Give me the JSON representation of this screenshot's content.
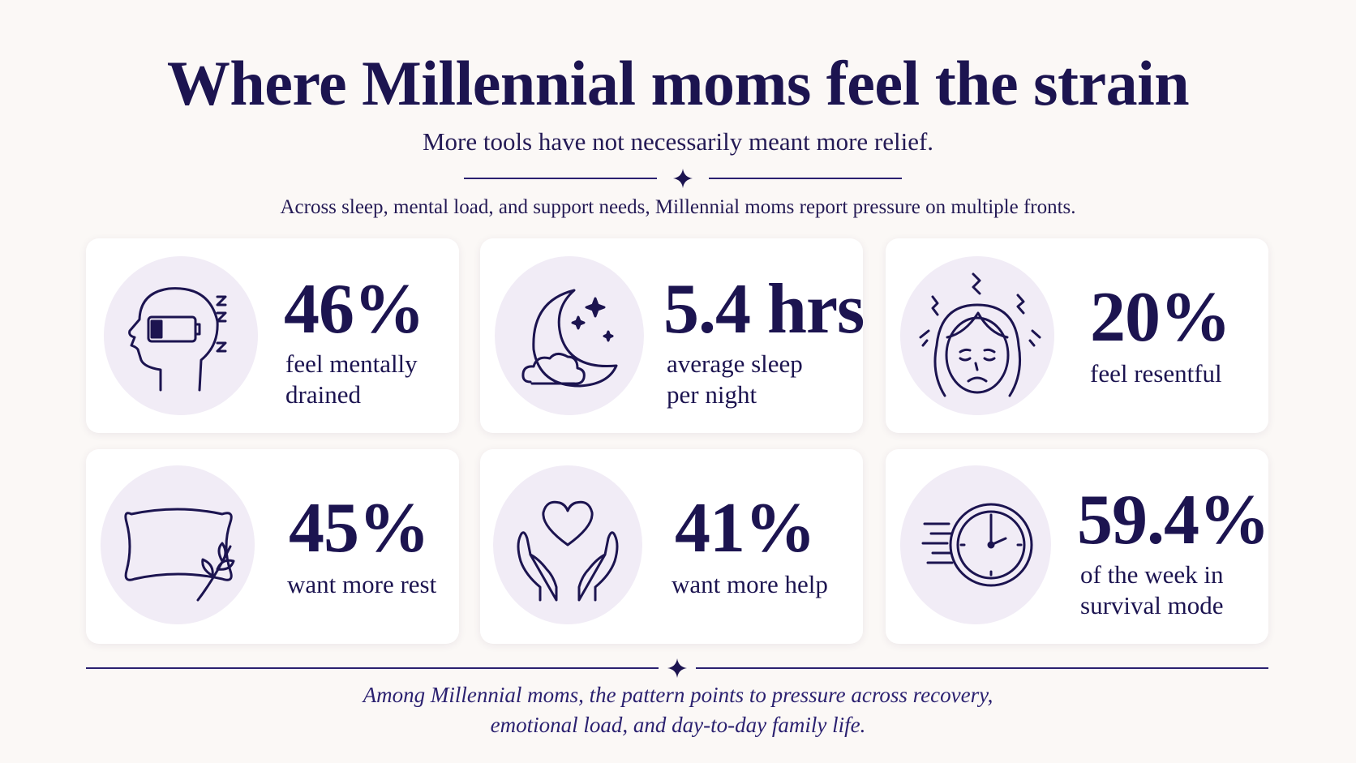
{
  "header": {
    "title": "Where Millennial moms feel the strain",
    "subtitle": "More tools have not necessarily meant more relief.",
    "intro": "Across sleep, mental load, and support needs, Millennial moms report pressure on multiple fronts."
  },
  "colors": {
    "primary": "#1c1450",
    "background": "#fbf8f6",
    "card": "#ffffff",
    "icon_circle": "#f1ecf6"
  },
  "stats": [
    {
      "value": "46%",
      "label_line1": "feel mentally",
      "label_line2": "drained",
      "icon": "head-low-battery-icon"
    },
    {
      "value": "5.4 hrs",
      "label_line1": "average sleep",
      "label_line2": "per night",
      "icon": "moon-cloud-icon"
    },
    {
      "value": "20%",
      "label_line1": "feel resentful",
      "label_line2": "",
      "icon": "stressed-woman-face-icon"
    },
    {
      "value": "45%",
      "label_line1": "want more rest",
      "label_line2": "",
      "icon": "pillow-icon"
    },
    {
      "value": "41%",
      "label_line1": "want more help",
      "label_line2": "",
      "icon": "hands-heart-icon"
    },
    {
      "value": "59.4%",
      "label_line1": "of the week in",
      "label_line2": "survival mode",
      "icon": "fast-clock-icon"
    }
  ],
  "footer": {
    "line1": "Among Millennial moms, the pattern points to pressure across recovery,",
    "line2": "emotional load, and day-to-day family life."
  }
}
